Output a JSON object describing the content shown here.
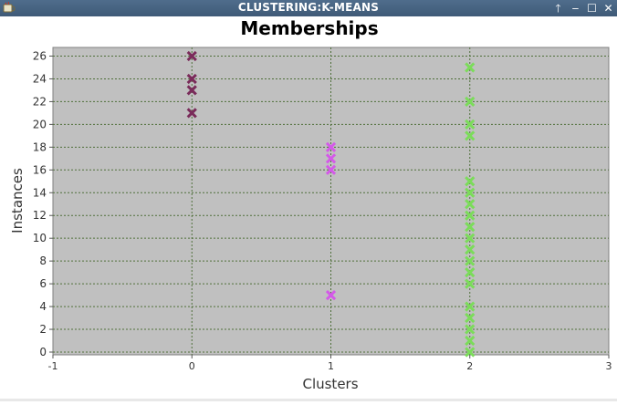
{
  "window": {
    "title": "CLUSTERING:K-MEANS",
    "icons": {
      "app": "java-app-icon",
      "pin": "arrow-up-icon",
      "minimize": "minimize-icon",
      "maximize": "maximize-icon",
      "close": "close-icon"
    },
    "buttons": {
      "pin": "🡑",
      "minimize": "‒",
      "maximize": "☐",
      "close": "✕"
    }
  },
  "chart_data": {
    "type": "scatter",
    "title": "Memberships",
    "xlabel": "Clusters",
    "ylabel": "Instances",
    "xlim": [
      -1,
      3
    ],
    "ylim": [
      0,
      27
    ],
    "x_ticks": [
      -1,
      0,
      1,
      2,
      3
    ],
    "y_ticks": [
      0,
      2,
      4,
      6,
      8,
      10,
      12,
      14,
      16,
      18,
      20,
      22,
      24,
      26
    ],
    "grid": true,
    "plot_background": "#c0c0c0",
    "series": [
      {
        "color": "#7a2b5a",
        "x": [
          0,
          0,
          0,
          0
        ],
        "y": [
          26,
          24,
          23,
          21
        ]
      },
      {
        "color": "#d45ae8",
        "x": [
          1,
          1,
          1,
          1
        ],
        "y": [
          18,
          17,
          16,
          5
        ]
      },
      {
        "color": "#7bdc5a",
        "x": [
          2,
          2,
          2,
          2,
          2,
          2,
          2,
          2,
          2,
          2,
          2,
          2,
          2,
          2,
          2,
          2,
          2,
          2,
          2
        ],
        "y": [
          25,
          22,
          20,
          19,
          15,
          14,
          13,
          12,
          11,
          10,
          9,
          8,
          7,
          6,
          4,
          3,
          2,
          1,
          0
        ]
      }
    ]
  }
}
